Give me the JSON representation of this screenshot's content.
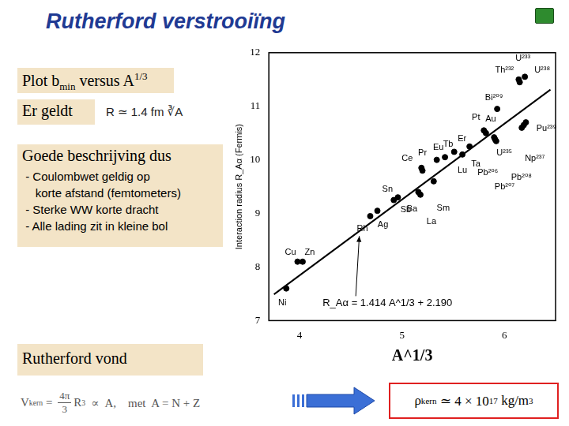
{
  "slide": {
    "title": "Rutherford verstrooiïng",
    "heading": [
      {
        "t": "Plot b"
      },
      {
        "t": "min",
        "sub": true
      },
      {
        "t": " versus A"
      },
      {
        "t": "1/3",
        "sup": true
      }
    ],
    "er_geldt": "Er geldt",
    "radius_formula": "R ≃ 1.4 fm ∛A",
    "conclusion": "Goede beschrijving dus",
    "bullets": [
      " - Coulombwet geldig op",
      "    korte afstand (femtometers)",
      " - Sterke WW korte dracht",
      " - Alle lading zit in kleine bol"
    ],
    "found": "Rutherford vond",
    "volume_formula": [
      {
        "t": "V"
      },
      {
        "t": "kern",
        "sub": true
      },
      {
        "t": " = "
      },
      {
        "num": "4π",
        "den": "3"
      },
      {
        "t": "R"
      },
      {
        "t": "3",
        "sup": true
      },
      {
        "t": "  ∝  A,    met  A = N + Z"
      }
    ],
    "density": [
      {
        "t": "ρ"
      },
      {
        "t": "kern",
        "sub": true
      },
      {
        "t": " ≃ 4 × 10"
      },
      {
        "t": "17",
        "sup": true
      },
      {
        "t": " kg/m"
      },
      {
        "t": "3",
        "sup": true
      }
    ]
  },
  "chart_data": {
    "type": "scatter",
    "x_label": "A^1/3",
    "y_label": "Interaction radius R_Aα (Fermis)",
    "xlim": [
      3.7,
      6.5
    ],
    "ylim": [
      7,
      12
    ],
    "xticks": [
      4,
      5,
      6
    ],
    "yticks": [
      7,
      8,
      9,
      10,
      11,
      12
    ],
    "grid": false,
    "series": [
      {
        "type": "scatter",
        "color": "#000000",
        "marker": "circle",
        "x": [
          3.87,
          3.98,
          4.03,
          4.69,
          4.76,
          4.92,
          4.96,
          5.16,
          5.18,
          5.19,
          5.2,
          5.31,
          5.34,
          5.42,
          5.51,
          5.59,
          5.66,
          5.8,
          5.82,
          5.9,
          5.91,
          5.92,
          5.93,
          6.14,
          6.15,
          6.2,
          6.17,
          6.19,
          6.21
        ],
        "values": [
          7.6,
          8.1,
          8.1,
          8.95,
          9.05,
          9.25,
          9.3,
          9.4,
          9.35,
          9.85,
          9.8,
          9.6,
          10.0,
          10.05,
          10.15,
          10.1,
          10.25,
          10.55,
          10.5,
          10.42,
          10.38,
          10.35,
          10.95,
          11.5,
          11.45,
          11.55,
          10.6,
          10.65,
          10.7
        ],
        "point_labels": [
          "Ni",
          "Cu",
          "Zn",
          "Rh",
          "Ag",
          "Sn",
          "Sb",
          "Ba",
          "La",
          "Ce",
          "Pr",
          "Sm",
          "Eu",
          "Tb",
          "Er",
          "Lu",
          "Ta",
          "Pt",
          "Au",
          "Pb²⁰⁶",
          "Pb²⁰⁷",
          "Pb²⁰⁸",
          "Bi²⁰⁹",
          "Th²³²",
          "U²³³",
          "U²³⁸",
          "U²³⁵",
          "Np²³⁷",
          "Pu²³⁹"
        ]
      },
      {
        "type": "line",
        "color": "#000000",
        "x": [
          3.75,
          6.45
        ],
        "values": [
          7.49,
          11.31
        ],
        "annotation": "R_Aα = 1.414 A^1/3 + 2.190"
      }
    ]
  }
}
